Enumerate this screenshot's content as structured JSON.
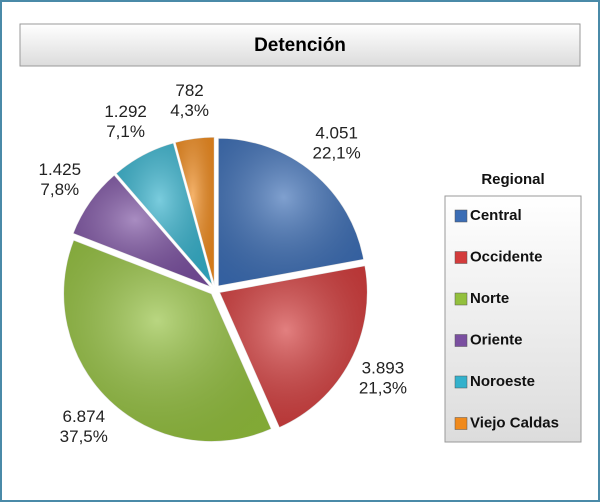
{
  "chart_data": {
    "type": "pie",
    "title": "Detención",
    "legend_title": "Regional",
    "categories": [
      "Central",
      "Occidente",
      "Norte",
      "Oriente",
      "Noroeste",
      "Viejo Caldas"
    ],
    "values": [
      4051,
      3893,
      6874,
      1425,
      1292,
      782
    ],
    "value_labels": [
      "4.051",
      "3.893",
      "6.874",
      "1.425",
      "1.292",
      "782"
    ],
    "percentages": [
      22.1,
      21.3,
      37.5,
      7.8,
      7.1,
      4.3
    ],
    "percentage_labels": [
      "22,1%",
      "21,3%",
      "37,5%",
      "7,8%",
      "7,1%",
      "4,3%"
    ],
    "colors": [
      "#3b6db5",
      "#d33b3b",
      "#93c03d",
      "#7a4fa0",
      "#33b1cc",
      "#f08a1c"
    ],
    "legend_position": "right"
  }
}
